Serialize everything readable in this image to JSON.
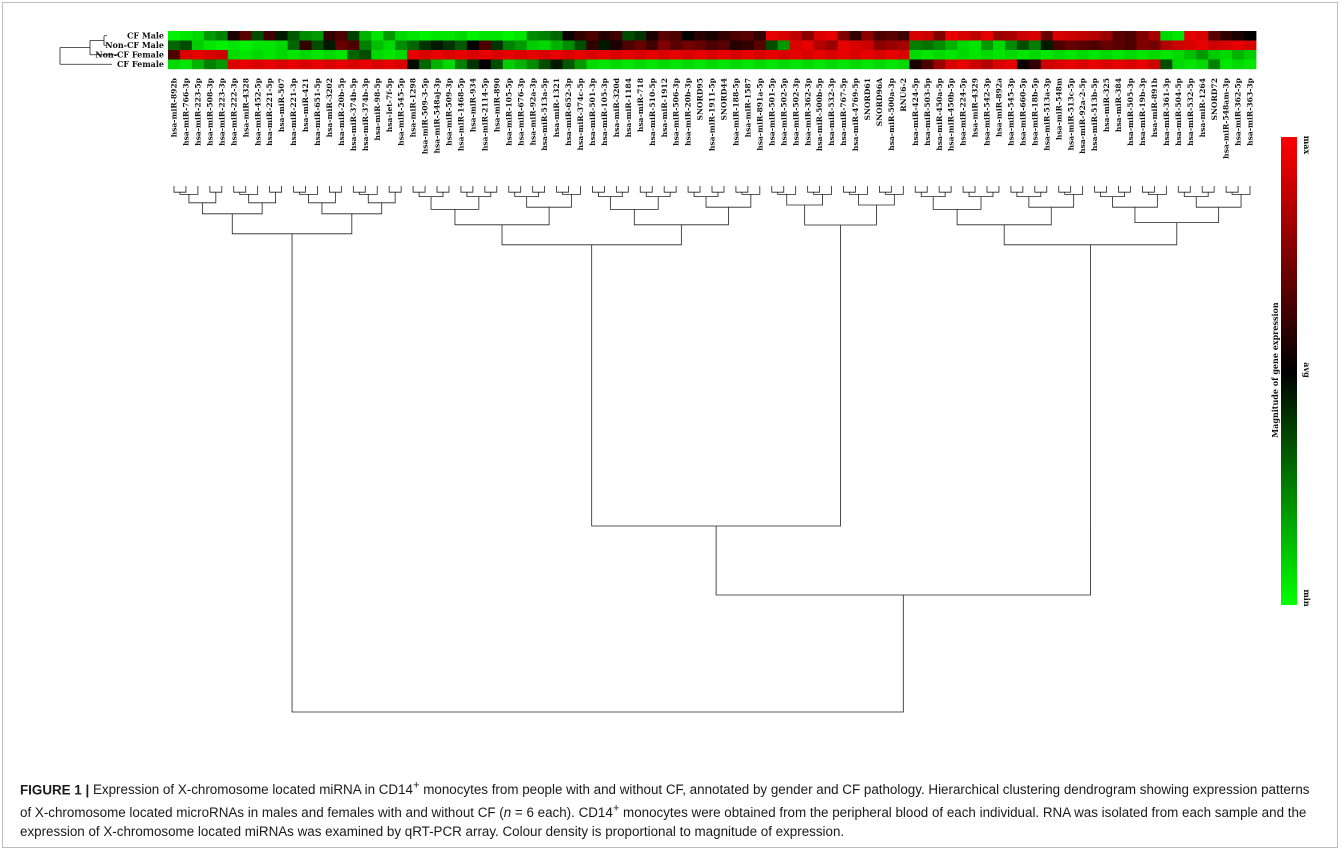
{
  "chart_data": {
    "type": "heatmap",
    "title": "",
    "rows": [
      "CF Male",
      "Non-CF Male",
      "Non-CF Female",
      "CF Female"
    ],
    "columns": [
      "hsa-miR-892b",
      "hsa-miR-766-3p",
      "hsa-miR-223-5p",
      "hsa-miR-508-3p",
      "hsa-miR-223-3p",
      "hsa-miR-222-3p",
      "hsa-miR-4328",
      "hsa-miR-452-5p",
      "hsa-miR-221-5p",
      "hsa-miR-507",
      "hsa-miR-221-3p",
      "hsa-miR-421",
      "hsa-miR-651-5p",
      "hsa-miR-3202",
      "hsa-miR-20b-5p",
      "hsa-miR-374b-5p",
      "hsa-miR-374b-3p",
      "hsa-miR-98-5p",
      "hsa-let-7f-5p",
      "hsa-miR-545-5p",
      "hsa-miR-1298",
      "hsa-miR-509-3-5p",
      "hsa-miR-548aj-3p",
      "hsa-miR-509-3p",
      "hsa-miR-1468-5p",
      "hsa-miR-934",
      "hsa-miR-2114-5p",
      "hsa-miR-890",
      "hsa-miR-105-5p",
      "hsa-miR-676-3p",
      "hsa-miR-92a-3p",
      "hsa-miR-513a-5p",
      "hsa-miR-1321",
      "hsa-miR-652-3p",
      "hsa-miR-374c-5p",
      "hsa-miR-501-3p",
      "hsa-miR-105-3p",
      "hsa-miR-320d",
      "hsa-miR-1184",
      "hsa-miR-718",
      "hsa-miR-510-5p",
      "hsa-miR-1912",
      "hsa-miR-506-3p",
      "hsa-miR-20b-3p",
      "SNORD95",
      "hsa-miR-1911-5p",
      "SNORD44",
      "hsa-miR-188-5p",
      "hsa-miR-1587",
      "hsa-miR-891a-5p",
      "hsa-miR-501-5p",
      "hsa-miR-502-5p",
      "hsa-miR-502-3p",
      "hsa-miR-362-3p",
      "hsa-miR-500b-5p",
      "hsa-miR-532-3p",
      "hsa-miR-767-5p",
      "hsa-miR-4769-5p",
      "SNORD61",
      "SNORD96A",
      "hsa-miR-500a-3p",
      "RNU6-2",
      "hsa-miR-424-5p",
      "hsa-miR-503-5p",
      "hsa-miR-450a-5p",
      "hsa-miR-450b-5p",
      "hsa-miR-224-5p",
      "hsa-miR-4329",
      "hsa-miR-542-3p",
      "hsa-miR-892a",
      "hsa-miR-545-3p",
      "hsa-miR-660-5p",
      "hsa-miR-18b-5p",
      "hsa-miR-513a-3p",
      "hsa-miR-548m",
      "hsa-miR-513c-5p",
      "hsa-miR-92a-2-5p",
      "hsa-miR-513b-5p",
      "hsa-miR-325",
      "hsa-miR-384",
      "hsa-miR-505-3p",
      "hsa-miR-19b-3p",
      "hsa-miR-891b",
      "hsa-miR-361-3p",
      "hsa-miR-504-5p",
      "hsa-miR-532-5p",
      "hsa-miR-1264",
      "SNORD72",
      "hsa-miR-548am-3p",
      "hsa-miR-362-5p",
      "hsa-miR-363-3p"
    ],
    "values": [
      [
        -0.95,
        -0.9,
        -0.85,
        -0.6,
        -0.5,
        0.1,
        0.35,
        -0.3,
        0.25,
        -0.1,
        -0.35,
        -0.55,
        -0.6,
        0.2,
        0.3,
        -0.25,
        -0.7,
        -0.9,
        -0.6,
        -0.85,
        -0.9,
        -0.95,
        -0.9,
        -0.9,
        -0.85,
        -0.95,
        -0.9,
        -0.9,
        -0.95,
        -0.9,
        -0.55,
        -0.5,
        -0.4,
        0.05,
        0.2,
        0.3,
        0.15,
        0.25,
        -0.3,
        -0.2,
        0.1,
        0.35,
        0.3,
        0.0,
        0.15,
        0.1,
        0.2,
        0.3,
        0.35,
        0.2,
        0.9,
        0.85,
        0.75,
        0.55,
        0.85,
        0.9,
        0.5,
        0.2,
        0.55,
        0.3,
        0.35,
        0.25,
        0.85,
        0.8,
        0.5,
        0.9,
        0.85,
        0.75,
        0.9,
        0.6,
        0.65,
        0.8,
        0.85,
        0.4,
        0.85,
        0.8,
        0.75,
        0.7,
        0.6,
        0.35,
        0.3,
        0.5,
        0.65,
        -0.85,
        -0.9,
        0.9,
        0.85,
        0.35,
        0.2,
        0.1,
        0.0
      ],
      [
        -0.4,
        -0.3,
        -0.8,
        -0.9,
        -0.95,
        -0.9,
        -0.95,
        -0.9,
        -0.9,
        -0.85,
        -0.4,
        0.2,
        -0.3,
        -0.1,
        0.4,
        0.3,
        -0.5,
        -0.75,
        -0.85,
        -0.55,
        -0.4,
        -0.2,
        -0.1,
        -0.2,
        -0.35,
        0.0,
        0.3,
        -0.2,
        -0.5,
        -0.6,
        -0.8,
        -0.85,
        -0.7,
        -0.55,
        -0.3,
        0.2,
        -0.1,
        0.1,
        0.3,
        0.4,
        0.25,
        0.5,
        0.35,
        0.45,
        0.4,
        0.3,
        0.35,
        0.15,
        0.2,
        0.35,
        -0.3,
        -0.6,
        0.85,
        0.9,
        0.7,
        0.6,
        0.9,
        0.85,
        0.8,
        0.55,
        0.6,
        0.65,
        -0.5,
        -0.45,
        -0.55,
        -0.7,
        -0.85,
        -0.9,
        -0.6,
        -0.85,
        -0.55,
        -0.3,
        -0.5,
        -0.1,
        0.3,
        0.4,
        0.35,
        0.3,
        0.4,
        0.35,
        0.3,
        0.5,
        0.45,
        0.7,
        0.8,
        0.85,
        0.9,
        0.8,
        0.85,
        0.9,
        0.85
      ],
      [
        0.3,
        0.85,
        0.9,
        0.85,
        0.8,
        -0.85,
        -0.9,
        -0.85,
        -0.9,
        -0.85,
        -0.9,
        -0.85,
        -0.9,
        -0.85,
        -0.9,
        -0.4,
        -0.3,
        -0.85,
        -0.9,
        -0.85,
        0.9,
        0.85,
        0.9,
        0.85,
        0.9,
        0.85,
        0.9,
        0.85,
        0.9,
        0.85,
        0.9,
        0.85,
        0.9,
        0.85,
        0.9,
        0.85,
        0.9,
        0.85,
        0.9,
        0.85,
        0.9,
        0.85,
        0.9,
        0.85,
        0.9,
        0.85,
        0.9,
        0.85,
        0.9,
        0.85,
        0.9,
        0.85,
        0.9,
        0.85,
        0.9,
        0.85,
        0.9,
        0.85,
        0.9,
        0.85,
        0.9,
        0.85,
        -0.85,
        -0.9,
        -0.85,
        -0.9,
        -0.85,
        -0.9,
        -0.85,
        -0.9,
        -0.85,
        -0.9,
        -0.85,
        -0.9,
        -0.85,
        -0.9,
        -0.85,
        -0.9,
        -0.85,
        -0.9,
        -0.85,
        -0.9,
        -0.85,
        -0.9,
        -0.85,
        -0.75,
        -0.6,
        -0.8,
        -0.85,
        -0.7,
        -0.8
      ],
      [
        -0.85,
        -0.9,
        -0.7,
        -0.5,
        -0.6,
        0.85,
        0.9,
        0.85,
        0.9,
        0.85,
        0.9,
        0.85,
        0.9,
        0.85,
        0.9,
        0.85,
        0.9,
        0.85,
        0.9,
        0.85,
        -0.05,
        -0.4,
        -0.7,
        -0.85,
        -0.5,
        -0.2,
        0.0,
        -0.3,
        -0.8,
        -0.7,
        -0.55,
        -0.3,
        -0.1,
        -0.35,
        -0.6,
        -0.85,
        -0.9,
        -0.85,
        -0.9,
        -0.85,
        -0.9,
        -0.85,
        -0.9,
        -0.85,
        -0.9,
        -0.85,
        -0.9,
        -0.85,
        -0.9,
        -0.85,
        -0.9,
        -0.85,
        -0.9,
        -0.85,
        -0.9,
        -0.85,
        -0.9,
        -0.85,
        -0.9,
        -0.85,
        -0.9,
        -0.85,
        0.1,
        0.3,
        0.6,
        0.85,
        0.9,
        0.8,
        0.7,
        0.85,
        0.9,
        0.05,
        0.2,
        0.8,
        0.85,
        0.9,
        0.85,
        0.9,
        0.85,
        0.9,
        0.85,
        0.9,
        0.8,
        -0.3,
        -0.85,
        -0.9,
        -0.85,
        -0.5,
        -0.9,
        -0.85,
        -0.9
      ]
    ],
    "colorbar": {
      "label": "Magnitude of gene expression",
      "ticks": [
        "max",
        "avg",
        "min"
      ],
      "colors": [
        "#ff0000",
        "#000000",
        "#00ff00"
      ]
    }
  },
  "caption": {
    "label": "FIGURE 1 |",
    "text_html": "Expression of X-chromosome located miRNA in CD14<sup>+</sup> monocytes from people with and without CF, annotated by gender and CF pathology. Hierarchical clustering dendrogram showing expression patterns of X-chromosome located microRNAs in males and females with and without CF (<i>n</i> = 6 each). CD14<sup>+</sup> monocytes were obtained from the peripheral blood of each individual. RNA was isolated from each sample and the expression of X-chromosome located miRNAs was examined by qRT-PCR array. Colour density is proportional to magnitude of expression."
  }
}
